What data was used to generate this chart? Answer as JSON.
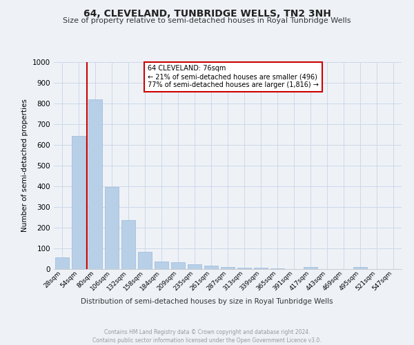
{
  "title": "64, CLEVELAND, TUNBRIDGE WELLS, TN2 3NH",
  "subtitle": "Size of property relative to semi-detached houses in Royal Tunbridge Wells",
  "xlabel": "Distribution of semi-detached houses by size in Royal Tunbridge Wells",
  "ylabel": "Number of semi-detached properties",
  "footer1": "Contains HM Land Registry data © Crown copyright and database right 2024.",
  "footer2": "Contains public sector information licensed under the Open Government Licence v3.0.",
  "categories": [
    "28sqm",
    "54sqm",
    "80sqm",
    "106sqm",
    "132sqm",
    "158sqm",
    "184sqm",
    "209sqm",
    "235sqm",
    "261sqm",
    "287sqm",
    "313sqm",
    "339sqm",
    "365sqm",
    "391sqm",
    "417sqm",
    "443sqm",
    "469sqm",
    "495sqm",
    "521sqm",
    "547sqm"
  ],
  "values": [
    57,
    645,
    820,
    397,
    238,
    83,
    38,
    32,
    23,
    17,
    10,
    8,
    7,
    4,
    0,
    9,
    0,
    0,
    9,
    0,
    0
  ],
  "bar_color": "#b8cfe8",
  "bar_edge_color": "#9ab8d8",
  "annotation_text1": "64 CLEVELAND: 76sqm",
  "annotation_text2": "← 21% of semi-detached houses are smaller (496)",
  "annotation_text3": "77% of semi-detached houses are larger (1,816) →",
  "annotation_box_facecolor": "#ffffff",
  "annotation_box_edgecolor": "#cc0000",
  "red_line_color": "#cc0000",
  "grid_color": "#ccd8e8",
  "ylim": [
    0,
    1000
  ],
  "yticks": [
    0,
    100,
    200,
    300,
    400,
    500,
    600,
    700,
    800,
    900,
    1000
  ],
  "bg_color": "#eef2f7",
  "title_fontsize": 10,
  "subtitle_fontsize": 8
}
